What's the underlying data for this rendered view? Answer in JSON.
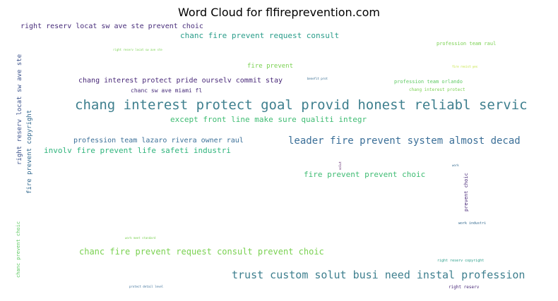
{
  "chart_data": {
    "type": "wordcloud",
    "title": "Word Cloud for flfireprevention.com",
    "colormap": "viridis",
    "words": [
      {
        "text": "right reserv locat sw ave ste prevent choic",
        "color": "#472c7a",
        "vertical": false
      },
      {
        "text": "chanc fire prevent request consult",
        "color": "#2a9d8a",
        "vertical": false
      },
      {
        "text": "profession team raul",
        "color": "#7ad151",
        "vertical": false
      },
      {
        "text": "right reserv locat sw ave ste",
        "color": "#3b528b",
        "vertical": true
      },
      {
        "text": "right reserv locat sw ave ste",
        "color": "#7ad151",
        "vertical": false
      },
      {
        "text": "fire prevent",
        "color": "#7ad151",
        "vertical": false
      },
      {
        "text": "fire resist yes",
        "color": "#bddf26",
        "vertical": false
      },
      {
        "text": "benefit prot",
        "color": "#31688e",
        "vertical": false
      },
      {
        "text": "chang interest protect pride ourselv commit stay",
        "color": "#482878",
        "vertical": false
      },
      {
        "text": "profession team orlando",
        "color": "#5ec962",
        "vertical": false
      },
      {
        "text": "fire prevent copyright",
        "color": "#31688e",
        "vertical": true
      },
      {
        "text": "chanc sw ave miami fl",
        "color": "#472c7a",
        "vertical": false
      },
      {
        "text": "chang interest protect",
        "color": "#7ad151",
        "vertical": false
      },
      {
        "text": "chang interest protect goal provid honest reliabl servic",
        "color": "#3e7f8e",
        "vertical": false
      },
      {
        "text": "except front line make sure qualiti integr",
        "color": "#3fbc73",
        "vertical": false
      },
      {
        "text": "profession team lazaro rivera owner raul",
        "color": "#3b6f98",
        "vertical": false
      },
      {
        "text": "leader fire prevent system almost decad",
        "color": "#3b6f98",
        "vertical": false
      },
      {
        "text": "involv fire prevent life safeti industri",
        "color": "#2fb47c",
        "vertical": false
      },
      {
        "text": "solut",
        "color": "#440154",
        "vertical": true
      },
      {
        "text": "fire prevent prevent choic",
        "color": "#3fbc73",
        "vertical": false
      },
      {
        "text": "work",
        "color": "#31688e",
        "vertical": false
      },
      {
        "text": "prevent choic",
        "color": "#482878",
        "vertical": true
      },
      {
        "text": "chanc prevent choic",
        "color": "#5ec962",
        "vertical": true
      },
      {
        "text": "work meet standard",
        "color": "#7ad151",
        "vertical": false
      },
      {
        "text": "work industri",
        "color": "#31688e",
        "vertical": false
      },
      {
        "text": "chanc fire prevent request consult prevent choic",
        "color": "#7ad151",
        "vertical": false
      },
      {
        "text": "right reserv copyright",
        "color": "#2a9d8a",
        "vertical": false
      },
      {
        "text": "trust custom solut busi need instal profession",
        "color": "#3e7f8e",
        "vertical": false
      },
      {
        "text": "protect detail level",
        "color": "#3b6f98",
        "vertical": false
      },
      {
        "text": "right reserv",
        "color": "#482878",
        "vertical": false
      }
    ]
  }
}
